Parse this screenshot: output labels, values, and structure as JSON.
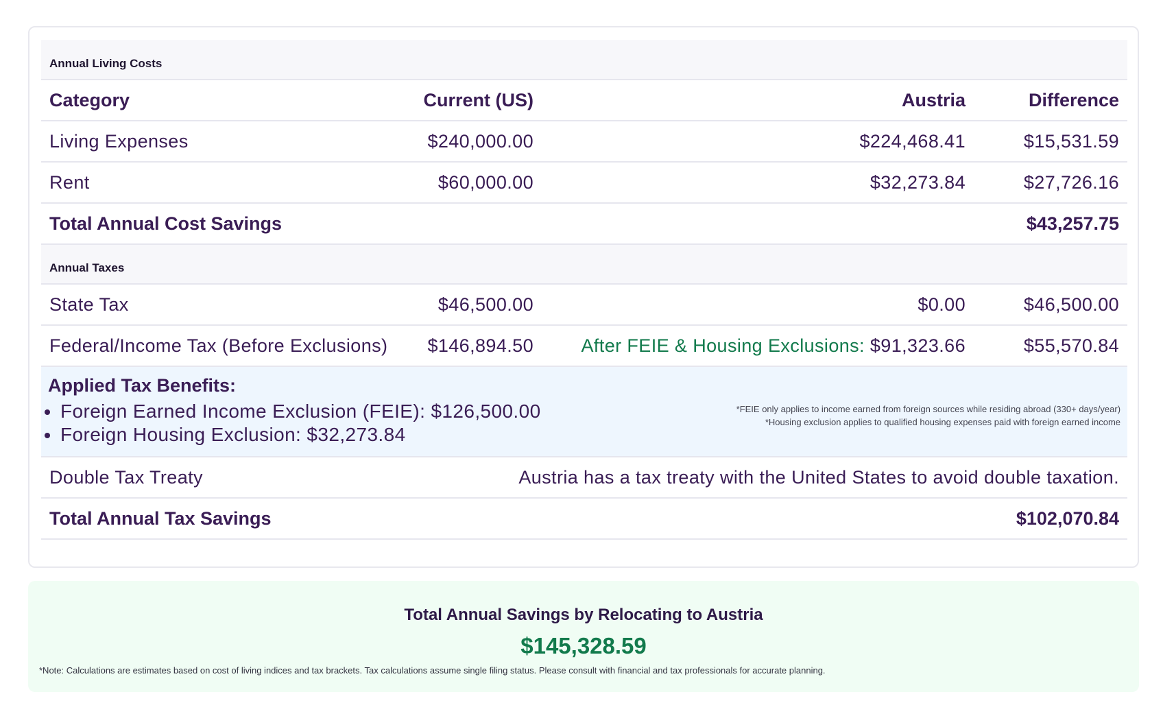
{
  "living_costs": {
    "section_title": "Annual Living Costs",
    "headers": {
      "category": "Category",
      "current": "Current (US)",
      "austria": "Austria",
      "difference": "Difference"
    },
    "rows": [
      {
        "category": "Living Expenses",
        "current": "$240,000.00",
        "austria": "$224,468.41",
        "difference": "$15,531.59"
      },
      {
        "category": "Rent",
        "current": "$60,000.00",
        "austria": "$32,273.84",
        "difference": "$27,726.16"
      }
    ],
    "total": {
      "label": "Total Annual Cost Savings",
      "value": "$43,257.75"
    }
  },
  "taxes": {
    "section_title": "Annual Taxes",
    "state_tax": {
      "category": "State Tax",
      "current": "$46,500.00",
      "austria": "$0.00",
      "difference": "$46,500.00"
    },
    "federal_tax": {
      "category": "Federal/Income Tax (Before Exclusions)",
      "current": "$146,894.50",
      "after_label": "After FEIE & Housing Exclusions:",
      "austria": "$91,323.66",
      "difference": "$55,570.84"
    },
    "benefits": {
      "title": "Applied Tax Benefits:",
      "items": [
        "Foreign Earned Income Exclusion (FEIE): $126,500.00",
        "Foreign Housing Exclusion: $32,273.84"
      ],
      "notes": [
        "*FEIE only applies to income earned from foreign sources while residing abroad (330+ days/year)",
        "*Housing exclusion applies to qualified housing expenses paid with foreign earned income"
      ]
    },
    "treaty": {
      "label": "Double Tax Treaty",
      "text": "Austria has a tax treaty with the United States to avoid double taxation."
    },
    "total": {
      "label": "Total Annual Tax Savings",
      "value": "$102,070.84"
    }
  },
  "summary": {
    "title": "Total Annual Savings by Relocating to Austria",
    "value": "$145,328.59",
    "note": "*Note: Calculations are estimates based on cost of living indices and tax brackets. Tax calculations assume single filing status. Please consult with financial and tax professionals for accurate planning."
  },
  "colors": {
    "primary_text": "#3a1d55",
    "accent_green": "#127a4c",
    "benefits_bg": "#eef6fe",
    "summary_bg": "#f0fdf4"
  }
}
